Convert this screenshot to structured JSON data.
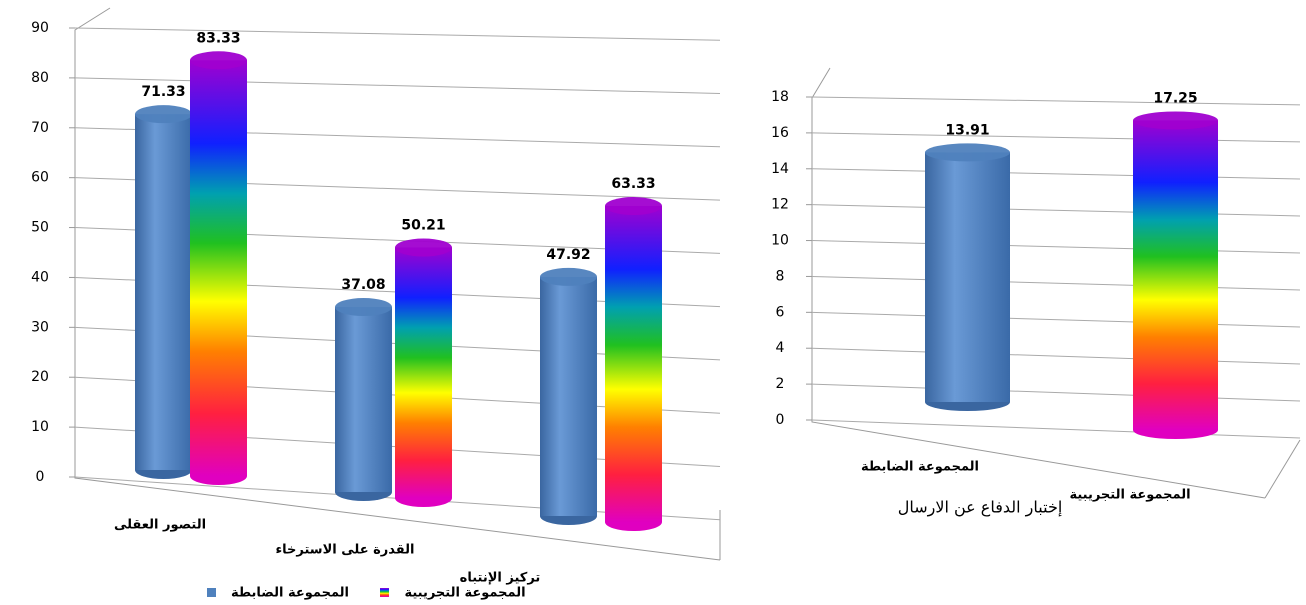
{
  "chart_data": [
    {
      "type": "bar",
      "categories": [
        "التصور العقلى",
        "القدرة على الاسترخاء",
        "تركيز الإنتباه"
      ],
      "series": [
        {
          "name": "المجموعة الضابطة",
          "color": "#4f81bd",
          "values": [
            71.33,
            37.08,
            47.92
          ]
        },
        {
          "name": "المجموعة التجريبية",
          "color": "rainbow",
          "values": [
            83.33,
            50.21,
            63.33
          ]
        }
      ],
      "ylim": [
        0,
        90
      ],
      "yticks": [
        0,
        10,
        20,
        30,
        40,
        50,
        60,
        70,
        80,
        90
      ],
      "grid": true,
      "legend": "bottom"
    },
    {
      "type": "bar",
      "categories": [
        "المجموعة الضابطة",
        "المجموعة التجريبية"
      ],
      "x_label": "إختبار الدفاع عن الارسال",
      "values": [
        13.91,
        17.25
      ],
      "colors": [
        "#4f81bd",
        "rainbow"
      ],
      "ylim": [
        0,
        18
      ],
      "yticks": [
        0,
        2,
        4,
        6,
        8,
        10,
        12,
        14,
        16,
        18
      ],
      "grid": true
    }
  ]
}
